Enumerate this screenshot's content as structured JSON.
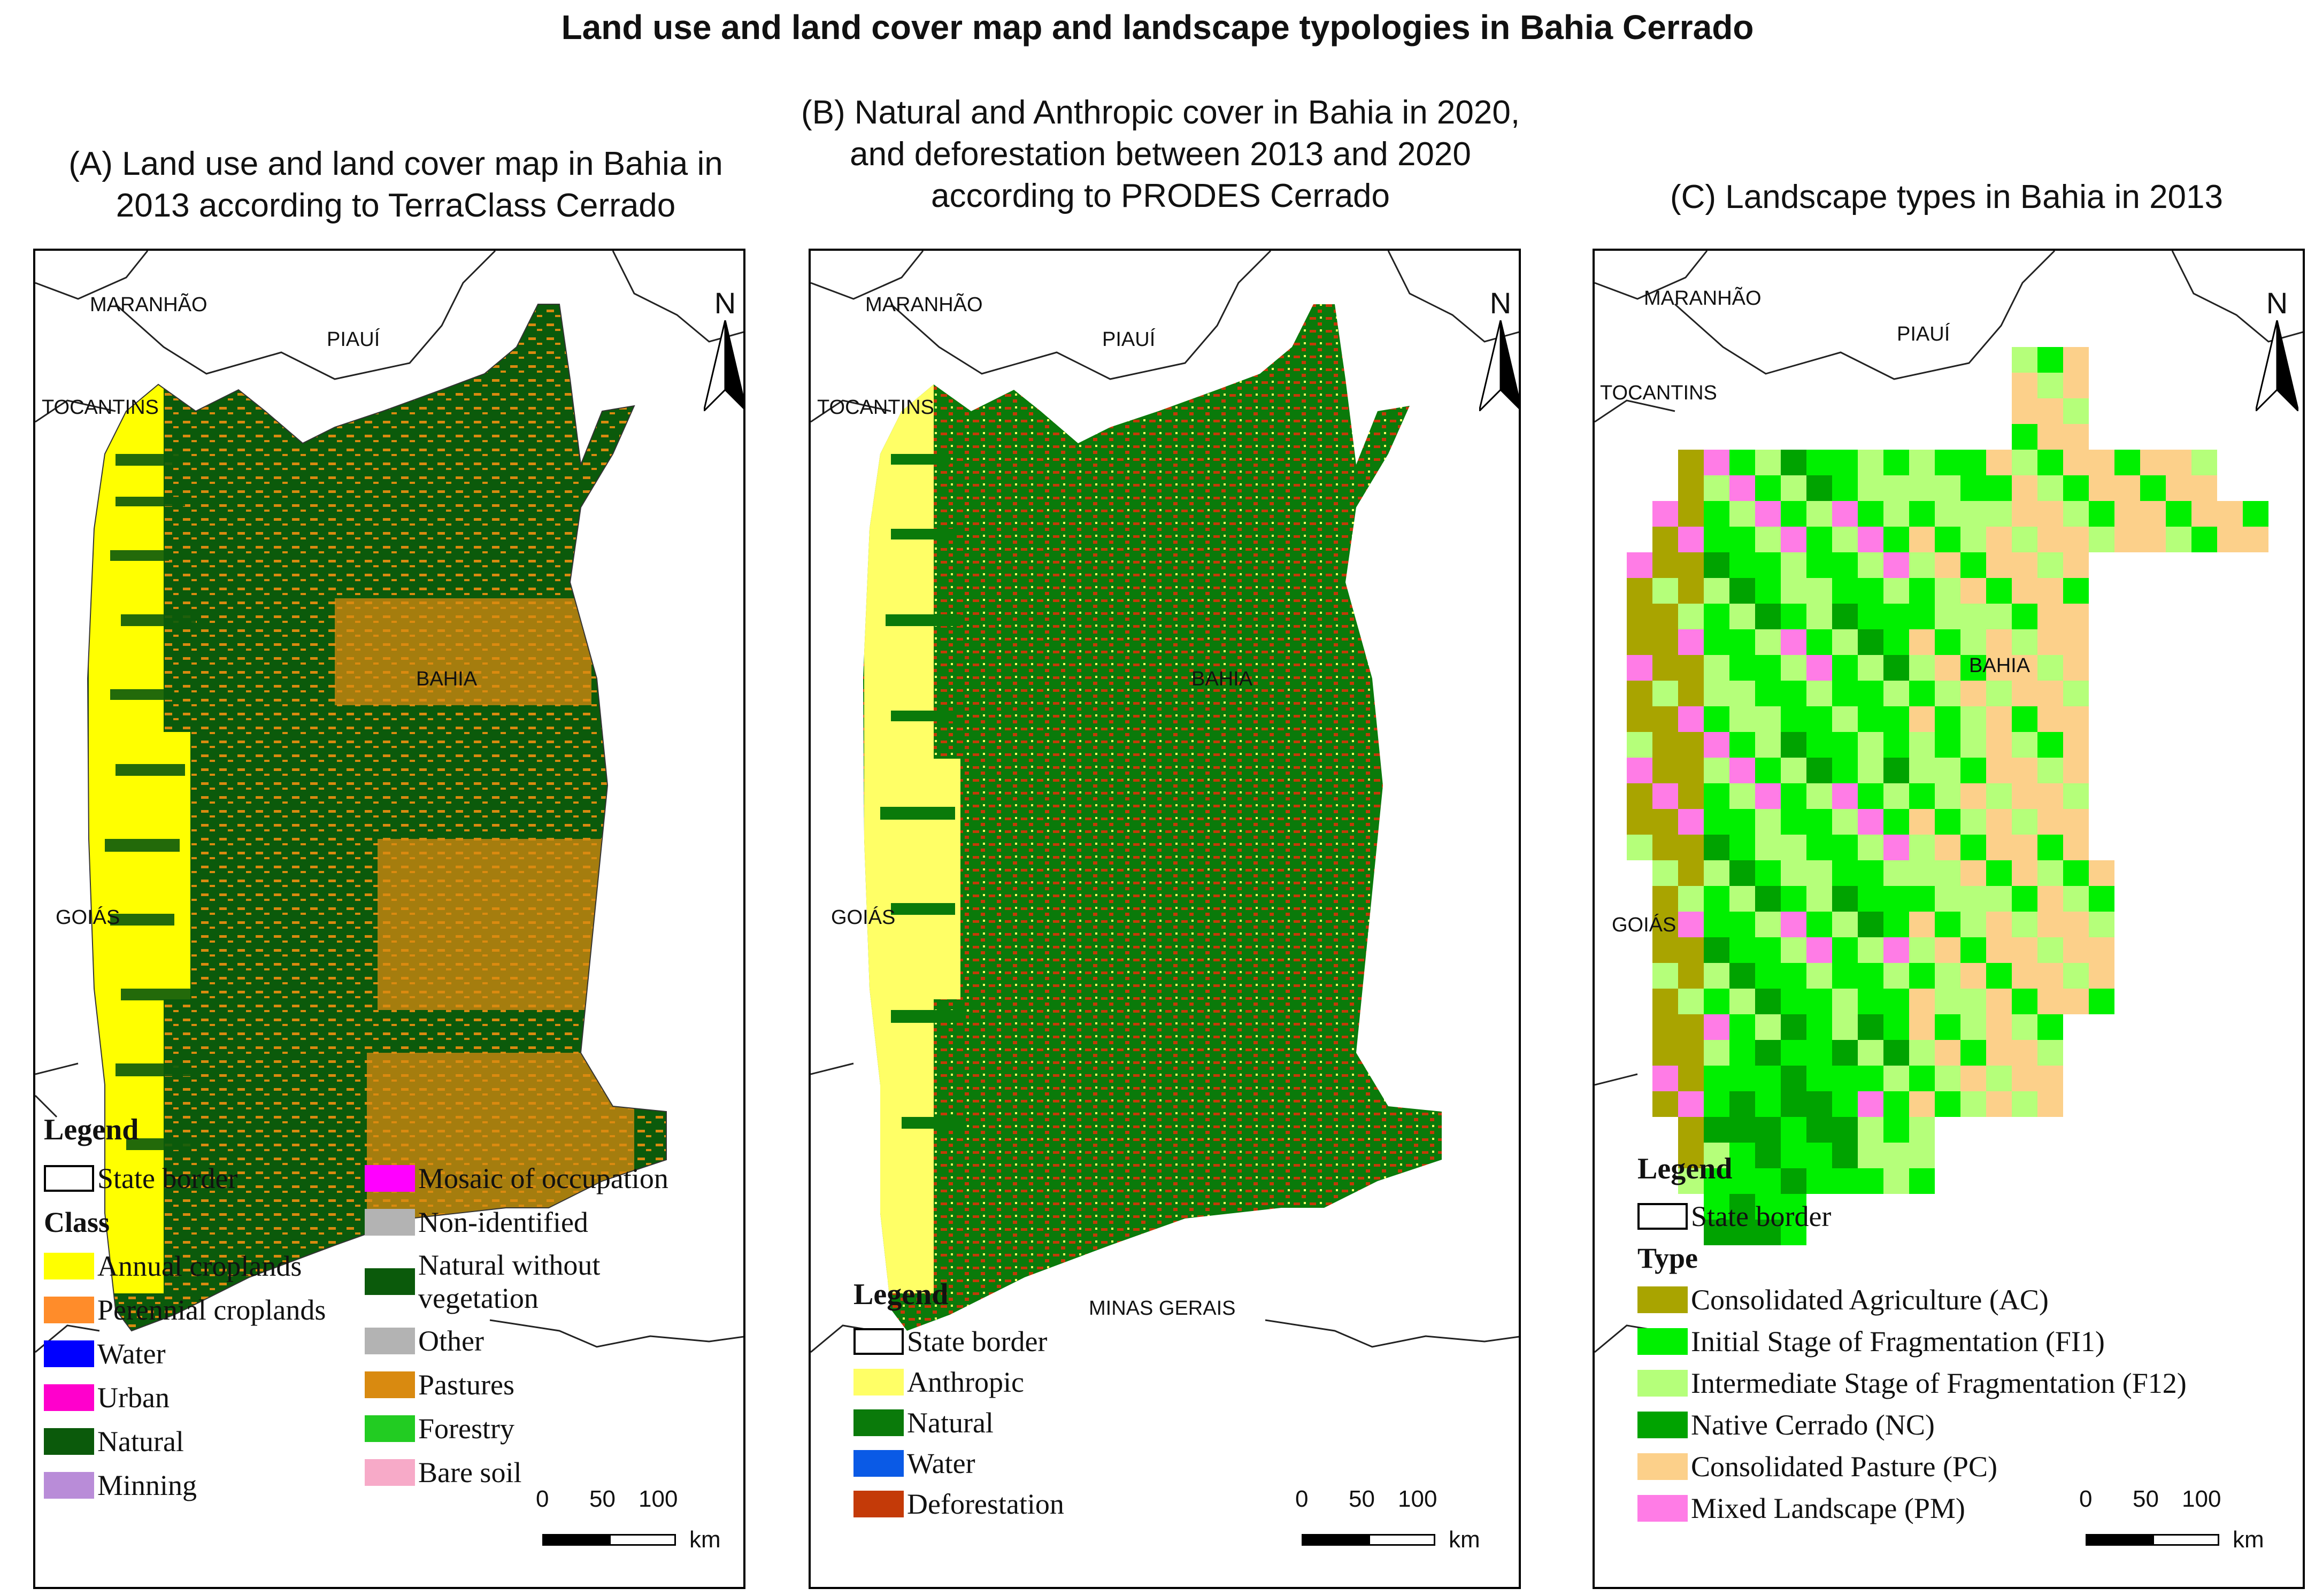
{
  "figure_title": "Land use and land cover map and landscape typologies in Bahia Cerrado",
  "panels": [
    {
      "subtitle": "(A) Land use and land cover map in Bahia in\n2013 according to TerraClass Cerrado",
      "labels": {
        "maranhao": "MARANHÃO",
        "piaui": "PIAUÍ",
        "tocantins": "TOCANTINS",
        "bahia": "BAHIA",
        "goias": "GOIÁS"
      },
      "north": "N",
      "legend": {
        "title": "Legend",
        "state_border": "State border",
        "class_heading": "Class",
        "items_col1": [
          {
            "label": "Annual croplands",
            "color": "#ffff00"
          },
          {
            "label": "Perennial croplands",
            "color": "#ff8c2a"
          },
          {
            "label": "Water",
            "color": "#0000ff"
          },
          {
            "label": "Urban",
            "color": "#ff00cc"
          },
          {
            "label": "Natural",
            "color": "#0b5a0b"
          },
          {
            "label": "Minning",
            "color": "#b98cd8"
          }
        ],
        "items_col2": [
          {
            "label": "Mosaic of occupation",
            "color": "#ff00ff"
          },
          {
            "label": "Non-identified",
            "color": "#b3b3b3"
          },
          {
            "label": "Natural without\nvegetation",
            "color": "#0b5a0b"
          },
          {
            "label": "Other",
            "color": "#b3b3b3"
          },
          {
            "label": "Pastures",
            "color": "#d98a10"
          },
          {
            "label": "Forestry",
            "color": "#22cc22"
          },
          {
            "label": "Bare soil",
            "color": "#f7aac8"
          }
        ]
      },
      "scale": {
        "ticks": [
          "0",
          "50",
          "100"
        ],
        "unit": "km"
      }
    },
    {
      "subtitle": "(B) Natural and Anthropic cover in Bahia in 2020,\nand deforestation between 2013 and 2020\naccording to PRODES Cerrado",
      "labels": {
        "maranhao": "MARANHÃO",
        "piaui": "PIAUÍ",
        "tocantins": "TOCANTINS",
        "bahia": "BAHIA",
        "goias": "GOIÁS",
        "minas": "MINAS GERAIS"
      },
      "north": "N",
      "legend": {
        "title": "Legend",
        "state_border": "State border",
        "items": [
          {
            "label": "Anthropic",
            "color": "#ffff66"
          },
          {
            "label": "Natural",
            "color": "#0a7a0a"
          },
          {
            "label": "Water",
            "color": "#0a5ae6"
          },
          {
            "label": "Deforestation",
            "color": "#c43a08"
          }
        ]
      },
      "scale": {
        "ticks": [
          "0",
          "50",
          "100"
        ],
        "unit": "km"
      }
    },
    {
      "subtitle": "(C) Landscape types in Bahia in 2013",
      "labels": {
        "maranhao": "MARANHÃO",
        "piaui": "PIAUÍ",
        "tocantins": "TOCANTINS",
        "bahia": "BAHIA",
        "goias": "GOIÁS"
      },
      "north": "N",
      "legend": {
        "title": "Legend",
        "state_border": "State border",
        "type_heading": "Type",
        "items": [
          {
            "label": "Consolidated Agriculture (AC)",
            "color": "#a9a400"
          },
          {
            "label": "Initial Stage of Fragmentation (FI1)",
            "color": "#00f000"
          },
          {
            "label": "Intermediate Stage of Fragmentation (F12)",
            "color": "#b5ff7a"
          },
          {
            "label": "Native Cerrado (NC)",
            "color": "#00a300"
          },
          {
            "label": "Consolidated Pasture (PC)",
            "color": "#fcd08a"
          },
          {
            "label": "Mixed Landscape (PM)",
            "color": "#ff7ce6"
          }
        ]
      },
      "scale": {
        "ticks": [
          "0",
          "50",
          "100"
        ],
        "unit": "km"
      }
    }
  ]
}
